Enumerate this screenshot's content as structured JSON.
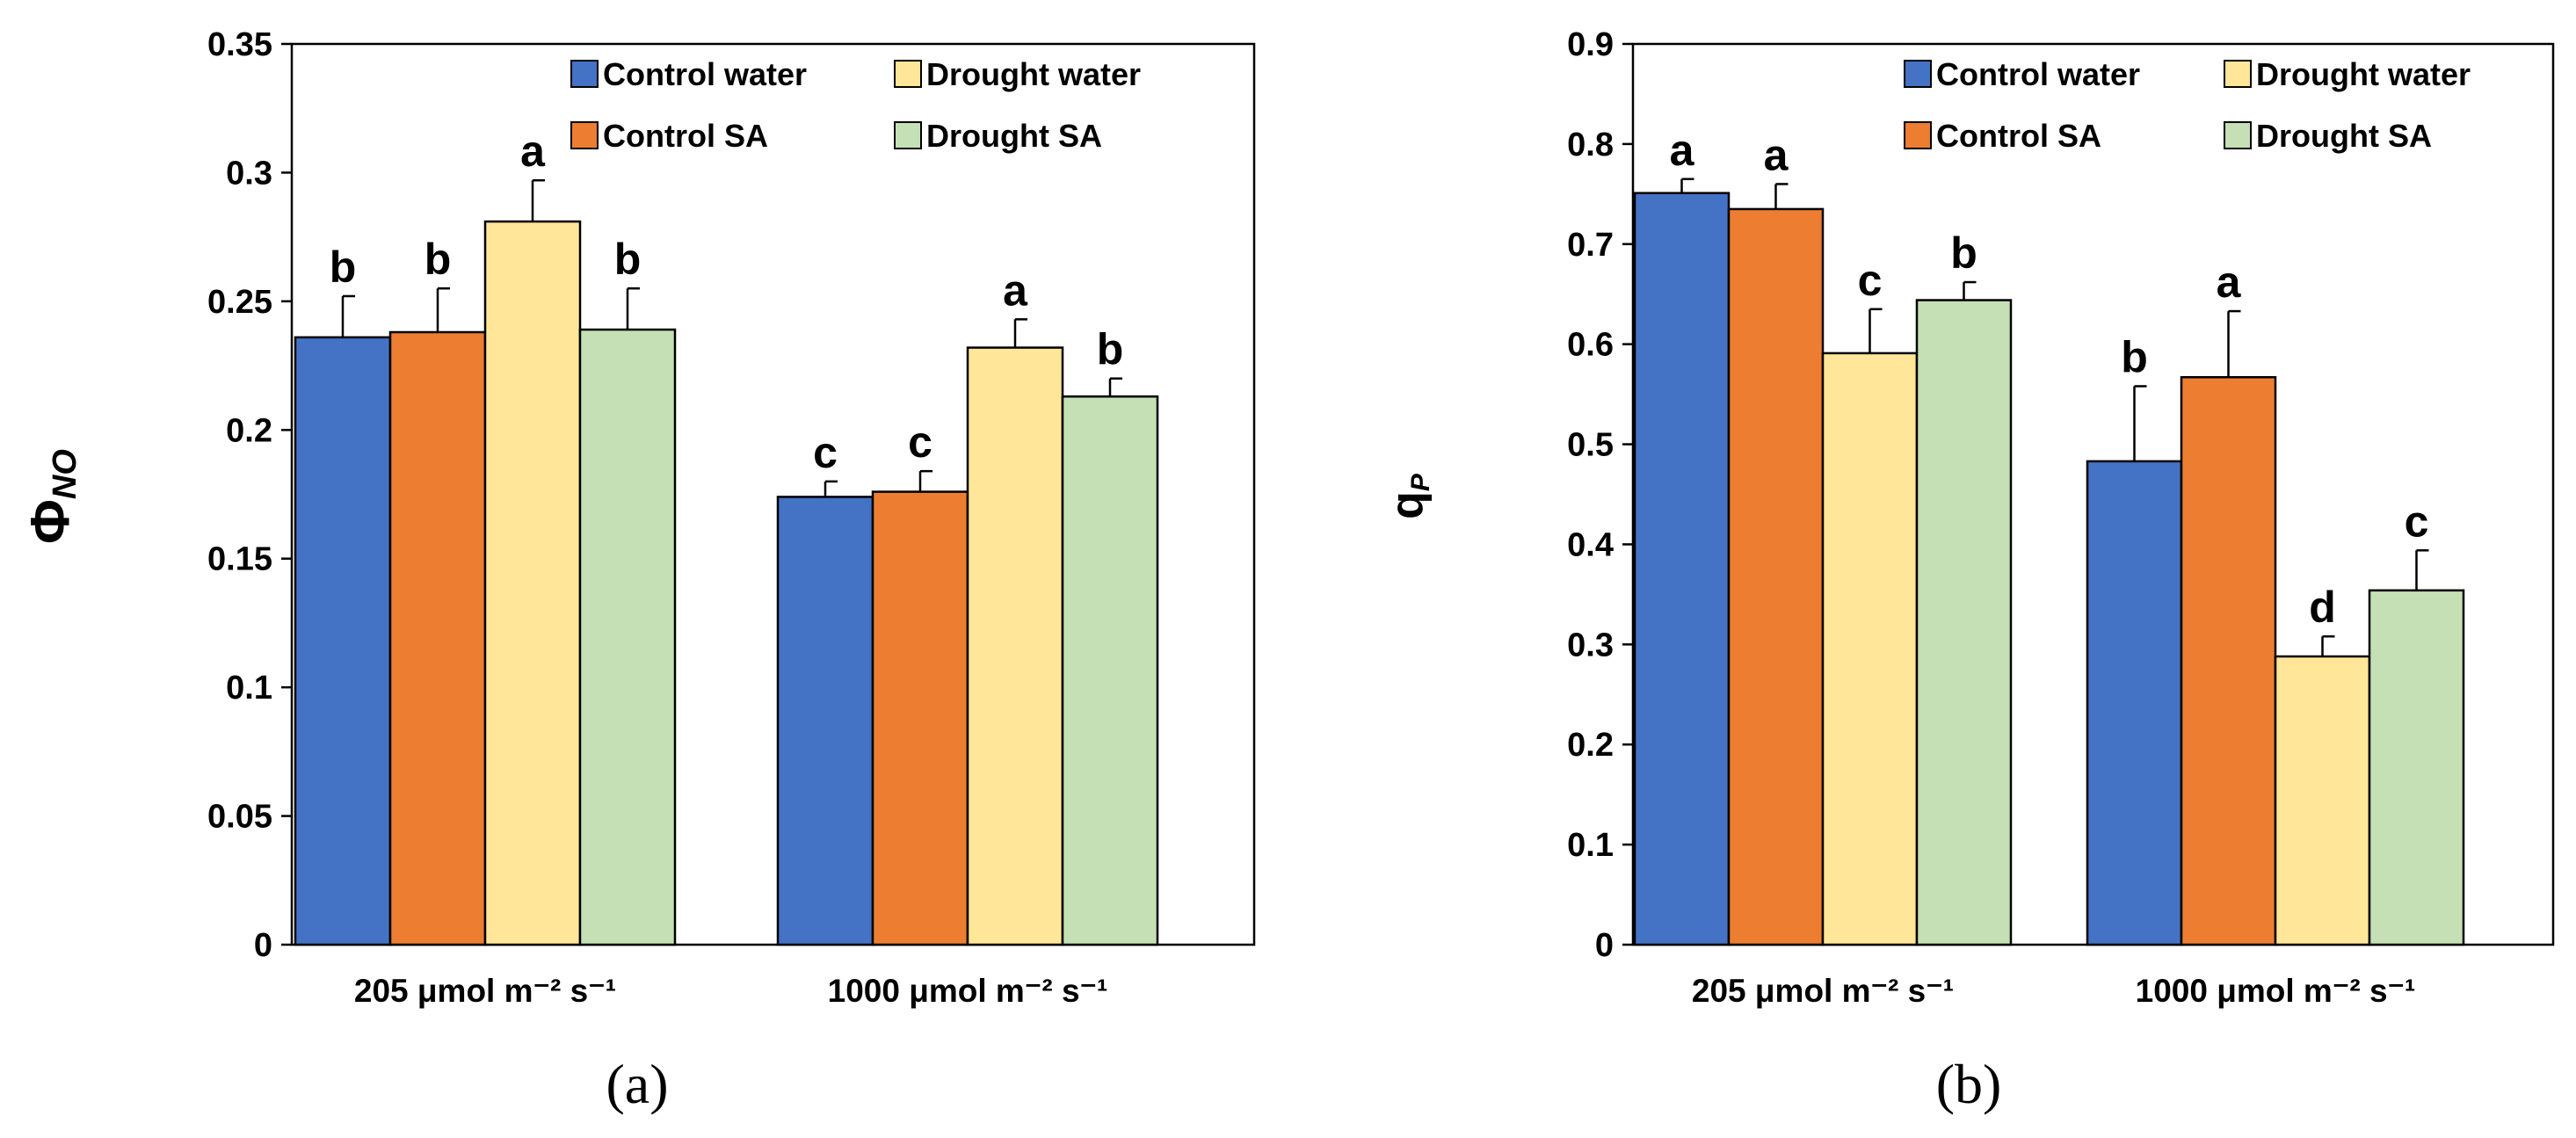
{
  "colors": {
    "Control water": "#4472c4",
    "Control SA": "#ed7d31",
    "Drought water": "#ffe699",
    "Drought SA": "#c5e0b4"
  },
  "chart_data": [
    {
      "type": "bar",
      "panel": "a",
      "panel_label": "(a)",
      "ylabel_main": "Φ",
      "ylabel_sub": "NO",
      "ylim": [
        0,
        0.35
      ],
      "yticks": [
        "0",
        "0.05",
        "0.1",
        "0.15",
        "0.2",
        "0.25",
        "0.3",
        "0.35"
      ],
      "tick_values": [
        0,
        0.05,
        0.1,
        0.15,
        0.2,
        0.25,
        0.3,
        0.35
      ],
      "categories": [
        "205 μmol m⁻² s⁻¹",
        "1000 μmol m⁻² s⁻¹"
      ],
      "series": [
        {
          "name": "Control water",
          "values": [
            0.236,
            0.174
          ],
          "errors": [
            0.016,
            0.006
          ],
          "letters": [
            "b",
            "c"
          ]
        },
        {
          "name": "Control SA",
          "values": [
            0.238,
            0.176
          ],
          "errors": [
            0.017,
            0.008
          ],
          "letters": [
            "b",
            "c"
          ]
        },
        {
          "name": "Drought water",
          "values": [
            0.281,
            0.232
          ],
          "errors": [
            0.016,
            0.011
          ],
          "letters": [
            "a",
            "a"
          ]
        },
        {
          "name": "Drought SA",
          "values": [
            0.239,
            0.213
          ],
          "errors": [
            0.016,
            0.007
          ],
          "letters": [
            "b",
            "b"
          ]
        }
      ],
      "legend": [
        "Control water",
        "Drought water",
        "Control SA",
        "Drought SA"
      ]
    },
    {
      "type": "bar",
      "panel": "b",
      "panel_label": "(b)",
      "ylabel_main": "q",
      "ylabel_sub": "P",
      "ylim": [
        0,
        0.9
      ],
      "yticks": [
        "0",
        "0.1",
        "0.2",
        "0.3",
        "0.4",
        "0.5",
        "0.6",
        "0.7",
        "0.8",
        "0.9"
      ],
      "tick_values": [
        0,
        0.1,
        0.2,
        0.3,
        0.4,
        0.5,
        0.6,
        0.7,
        0.8,
        0.9
      ],
      "categories": [
        "205 μmol m⁻² s⁻¹",
        "1000 μmol m⁻² s⁻¹"
      ],
      "series": [
        {
          "name": "Control water",
          "values": [
            0.751,
            0.483
          ],
          "errors": [
            0.014,
            0.075
          ],
          "letters": [
            "a",
            "b"
          ]
        },
        {
          "name": "Control SA",
          "values": [
            0.735,
            0.567
          ],
          "errors": [
            0.025,
            0.066
          ],
          "letters": [
            "a",
            "a"
          ]
        },
        {
          "name": "Drought water",
          "values": [
            0.591,
            0.288
          ],
          "errors": [
            0.044,
            0.02
          ],
          "letters": [
            "c",
            "d"
          ]
        },
        {
          "name": "Drought SA",
          "values": [
            0.644,
            0.354
          ],
          "errors": [
            0.018,
            0.04
          ],
          "letters": [
            "b",
            "c"
          ]
        }
      ],
      "legend": [
        "Control water",
        "Drought water",
        "Control SA",
        "Drought SA"
      ]
    }
  ]
}
